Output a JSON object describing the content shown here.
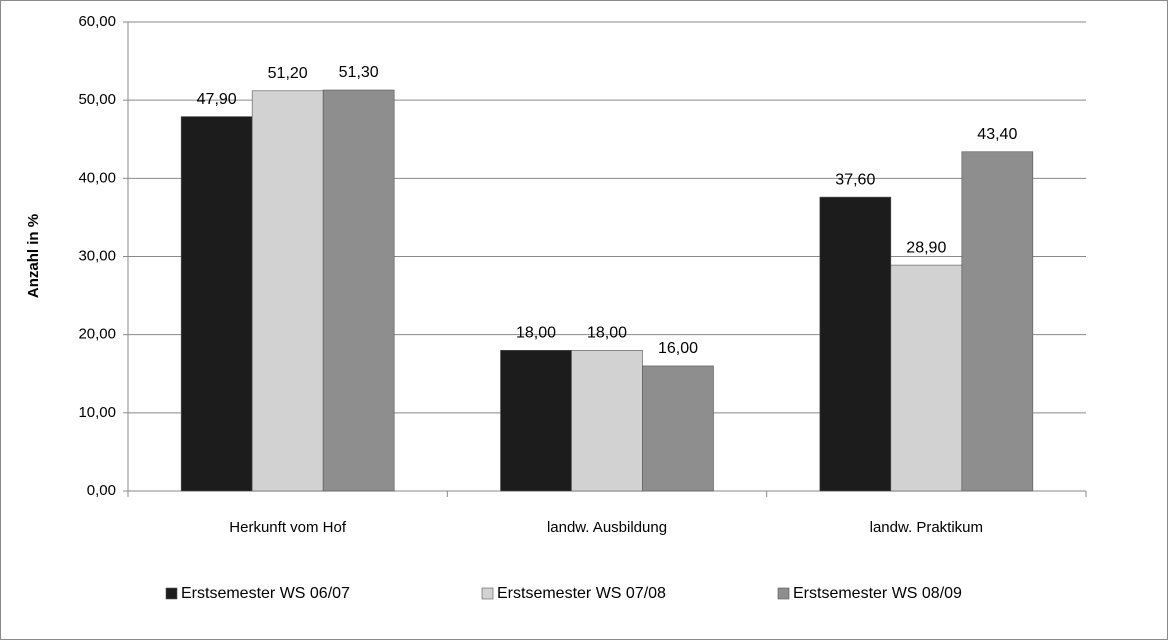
{
  "chart_data": {
    "type": "bar",
    "y_label": "Anzahl in %",
    "categories": [
      "Herkunft vom Hof",
      "landw. Ausbildung",
      "landw. Praktikum"
    ],
    "series": [
      {
        "name": "Erstsemester WS 06/07",
        "color": "#1c1c1c",
        "values": [
          47.9,
          18.0,
          37.6
        ],
        "value_labels": [
          "47,90",
          "18,00",
          "37,60"
        ]
      },
      {
        "name": "Erstsemester WS 07/08",
        "color": "#d2d2d2",
        "values": [
          51.2,
          18.0,
          28.9
        ],
        "value_labels": [
          "51,20",
          "18,00",
          "28,90"
        ]
      },
      {
        "name": "Erstsemester WS 08/09",
        "color": "#8e8e8e",
        "values": [
          51.3,
          16.0,
          43.4
        ],
        "value_labels": [
          "51,30",
          "16,00",
          "43,40"
        ]
      }
    ],
    "ylim": [
      0,
      60
    ],
    "yticks": [
      {
        "value": 0,
        "label": "0,00"
      },
      {
        "value": 10,
        "label": "10,00"
      },
      {
        "value": 20,
        "label": "20,00"
      },
      {
        "value": 30,
        "label": "30,00"
      },
      {
        "value": 40,
        "label": "40,00"
      },
      {
        "value": 50,
        "label": "50,00"
      },
      {
        "value": 60,
        "label": "60,00"
      }
    ],
    "grid": true,
    "legend": "bottom"
  }
}
